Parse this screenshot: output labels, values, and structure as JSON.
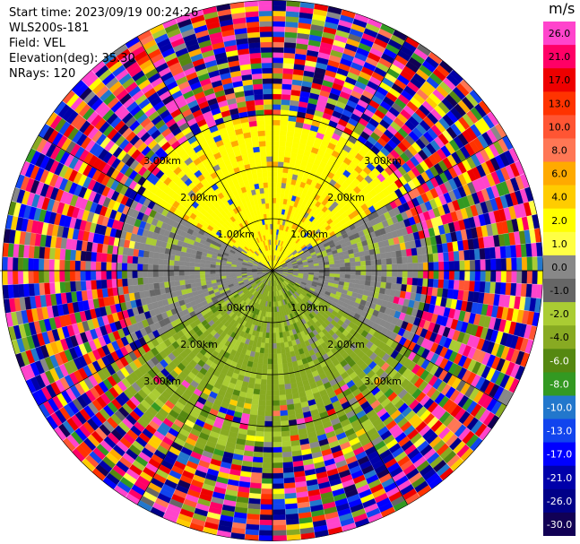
{
  "header": {
    "start_time": "Start time: 2023/09/19 00:24:26",
    "instrument": "WLS200s-181",
    "field": "Field: VEL",
    "elevation": "Elevation(deg): 35.30",
    "nrays": "NRays: 120"
  },
  "colorbar": {
    "unit": "m/s",
    "ticks": [
      "26.0",
      "21.0",
      "17.0",
      "13.0",
      "10.0",
      "8.0",
      "6.0",
      "4.0",
      "2.0",
      "1.0",
      "0.0",
      "-1.0",
      "-2.0",
      "-4.0",
      "-6.0",
      "-8.0",
      "-10.0",
      "-13.0",
      "-17.0",
      "-21.0",
      "-26.0",
      "-30.0"
    ],
    "colors": [
      "#ff44cc",
      "#ff0066",
      "#ee0000",
      "#ff3300",
      "#ff5533",
      "#ff7755",
      "#ffaa00",
      "#ffcc00",
      "#ffff00",
      "#ffff44",
      "#888888",
      "#666666",
      "#aacc33",
      "#88aa22",
      "#558811",
      "#339922",
      "#2277cc",
      "#1144ee",
      "#0000ff",
      "#0000aa",
      "#000088",
      "#110055"
    ]
  },
  "chart_data": {
    "type": "ppi",
    "field": "VEL",
    "nrays": 120,
    "elevation_deg": 35.3,
    "range_rings_km": [
      1.0,
      2.0,
      3.0
    ],
    "ring_labels": [
      "1.00km",
      "2.00km",
      "3.00km"
    ],
    "max_range_km": 5.2,
    "spokes_deg": [
      0,
      30,
      60,
      90,
      120,
      150,
      180,
      210,
      240,
      270,
      300,
      330
    ],
    "unit": "m/s",
    "vmin": -30.0,
    "vmax": 30.0,
    "pattern": {
      "north_sector": {
        "azimuth_deg": [
          300,
          60
        ],
        "max_range_km": 3.0,
        "velocity_ms": 2.0
      },
      "horizontal_band": {
        "azimuth_deg": [
          [
            60,
            120
          ],
          [
            240,
            300
          ]
        ],
        "max_range_km": 2.4,
        "velocity_ms": 0.0
      },
      "south_sector": {
        "azimuth_deg": [
          120,
          240
        ],
        "max_range_km": 3.4,
        "velocity_ms": -2.5
      },
      "outer_noise": {
        "min_range_km": 3.0,
        "velocity_ms": "random -30..30"
      }
    }
  }
}
